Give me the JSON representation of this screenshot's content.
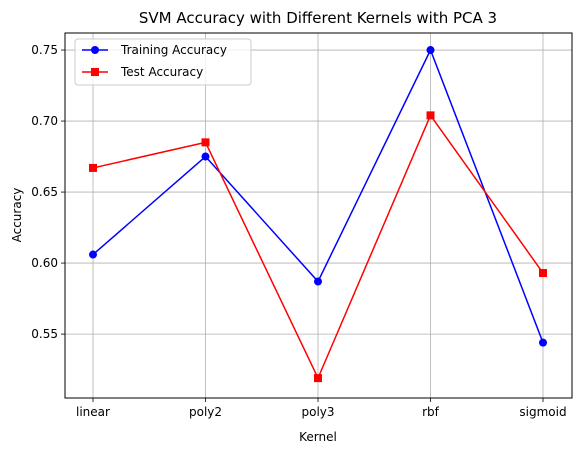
{
  "chart_data": {
    "type": "line",
    "title": "SVM Accuracy with Different Kernels with PCA 3",
    "xlabel": "Kernel",
    "ylabel": "Accuracy",
    "categories": [
      "linear",
      "poly2",
      "poly3",
      "rbf",
      "sigmoid"
    ],
    "series": [
      {
        "name": "Training Accuracy",
        "values": [
          0.606,
          0.675,
          0.587,
          0.75,
          0.544
        ],
        "color": "#0000ff",
        "marker": "circle"
      },
      {
        "name": "Test Accuracy",
        "values": [
          0.667,
          0.685,
          0.519,
          0.704,
          0.593
        ],
        "color": "#ff0000",
        "marker": "square"
      }
    ],
    "ylim": [
      0.505,
      0.762
    ],
    "yticks": [
      0.55,
      0.6,
      0.65,
      0.7,
      0.75
    ],
    "ytick_labels": [
      "0.55",
      "0.60",
      "0.65",
      "0.70",
      "0.75"
    ],
    "grid": true,
    "legend_position": "top-left"
  }
}
